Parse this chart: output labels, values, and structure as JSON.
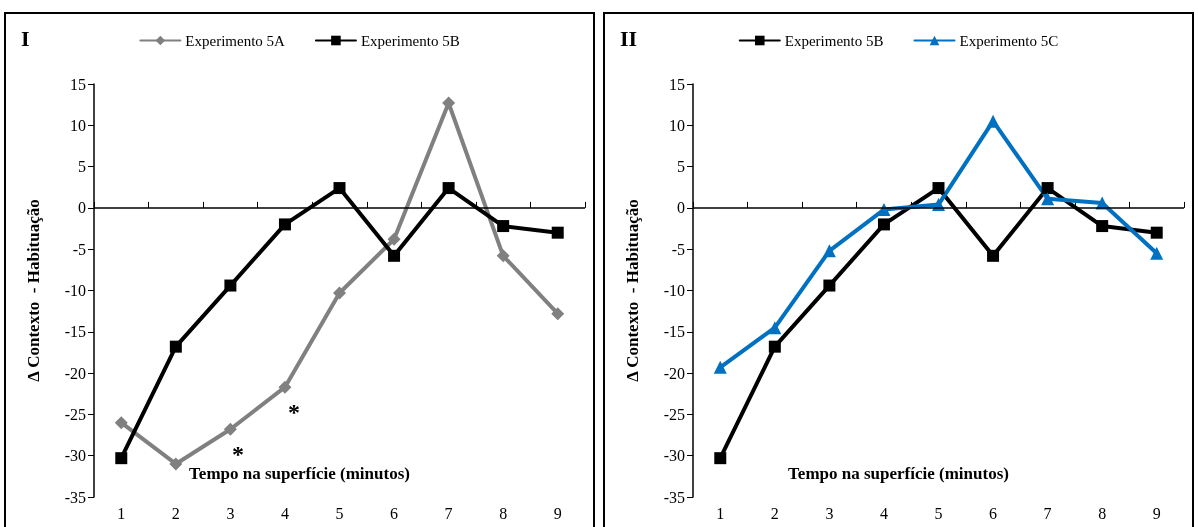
{
  "chart_data": [
    {
      "type": "line",
      "title": "I",
      "xlabel": "Tempo na superfície (minutos)",
      "ylabel": "Δ Contexto  - Habituação",
      "categories": [
        "1",
        "2",
        "3",
        "4",
        "5",
        "6",
        "7",
        "8",
        "9"
      ],
      "series": [
        {
          "name": "Experimento 5A",
          "color": "#808080",
          "marker": "diamond",
          "values": [
            -26,
            -31,
            -26.8,
            -21.7,
            -10.3,
            -3.8,
            12.7,
            -5.8,
            -12.8
          ]
        },
        {
          "name": "Experimento 5B",
          "color": "#000000",
          "marker": "square",
          "values": [
            -30.3,
            -16.8,
            -9.4,
            -2,
            2.4,
            -5.8,
            2.4,
            -2.2,
            -3
          ]
        }
      ],
      "ylim": [
        -35,
        15
      ],
      "yticks": [
        -35,
        -30,
        -25,
        -20,
        -15,
        -10,
        -5,
        0,
        5,
        10,
        15
      ],
      "grid": false,
      "legend": "top",
      "ref_lines": [
        {
          "axis": "y",
          "value": 0,
          "color": "#000000"
        }
      ],
      "annotations": [
        "*",
        "*"
      ]
    },
    {
      "type": "line",
      "title": "II",
      "xlabel": "Tempo na superfície (minutos)",
      "ylabel": "Δ Contexto  - Habituação",
      "categories": [
        "1",
        "2",
        "3",
        "4",
        "5",
        "6",
        "7",
        "8",
        "9"
      ],
      "series": [
        {
          "name": "Experimento 5B",
          "color": "#000000",
          "marker": "square",
          "values": [
            -30.3,
            -16.8,
            -9.4,
            -2,
            2.4,
            -5.8,
            2.4,
            -2.2,
            -3
          ]
        },
        {
          "name": "Experimento 5C",
          "color": "#0070c0",
          "marker": "triangle",
          "values": [
            -19.3,
            -14.5,
            -5.2,
            -0.2,
            0.4,
            10.5,
            1.1,
            0.6,
            -5.5
          ]
        }
      ],
      "ylim": [
        -35,
        15
      ],
      "yticks": [
        -35,
        -30,
        -25,
        -20,
        -15,
        -10,
        -5,
        0,
        5,
        10,
        15
      ],
      "grid": false,
      "legend": "top",
      "ref_lines": [
        {
          "axis": "y",
          "value": 0,
          "color": "#000000"
        }
      ]
    }
  ]
}
